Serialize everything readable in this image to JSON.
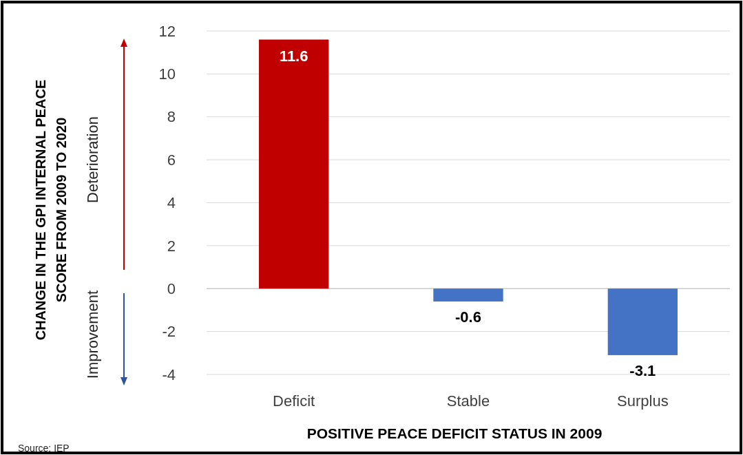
{
  "chart_data": {
    "type": "bar",
    "xlabel": "POSITIVE PEACE DEFICIT STATUS IN 2009",
    "categories": [
      "Deficit",
      "Stable",
      "Surplus"
    ],
    "values": [
      11.6,
      -0.6,
      -3.1
    ],
    "colors": [
      "#c00000",
      "#4472c4",
      "#4472c4"
    ],
    "ylim": [
      -4,
      12
    ],
    "yticks": [
      -4,
      -2,
      0,
      2,
      4,
      6,
      8,
      10,
      12
    ],
    "grid": "y",
    "data_labels": true,
    "annotations": [
      "Deterioration",
      "Improvement",
      "Source: IEP",
      "CHANGE IN THE GPI INTERNAL PEACE SCORE FROM 2009 TO 2020"
    ]
  }
}
